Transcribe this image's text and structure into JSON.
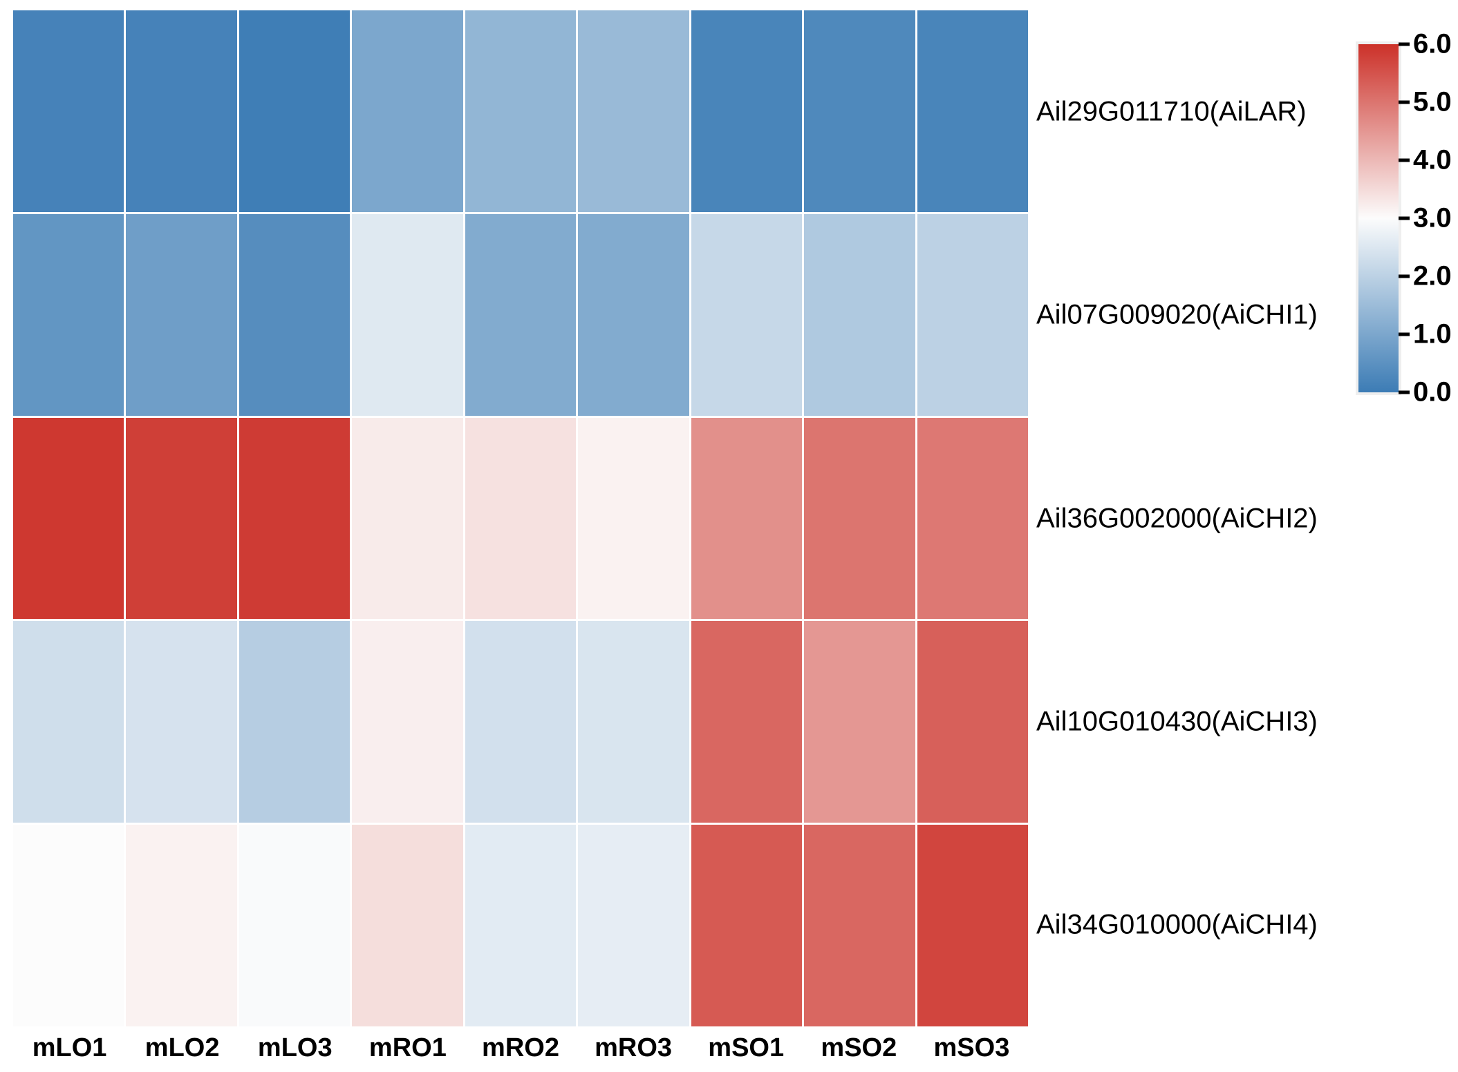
{
  "chart_data": {
    "type": "heatmap",
    "title": "",
    "xlabel": "",
    "ylabel": "",
    "columns": [
      "mLO1",
      "mLO2",
      "mLO3",
      "mRO1",
      "mRO2",
      "mRO3",
      "mSO1",
      "mSO2",
      "mSO3"
    ],
    "rows": [
      {
        "label": "Ail29G011710(AiLAR)",
        "values": [
          0.15,
          0.15,
          0.05,
          1.0,
          1.35,
          1.45,
          0.2,
          0.3,
          0.2
        ]
      },
      {
        "label": "Ail07G009020(AiCHI1)",
        "values": [
          0.6,
          0.8,
          0.4,
          2.55,
          1.1,
          1.1,
          2.15,
          1.8,
          2.0
        ]
      },
      {
        "label": "Ail36G002000(AiCHI2)",
        "values": [
          5.9,
          5.8,
          5.85,
          3.25,
          3.4,
          3.15,
          4.6,
          5.0,
          4.95
        ]
      },
      {
        "label": "Ail10G010430(AiCHI3)",
        "values": [
          2.3,
          2.4,
          1.9,
          3.2,
          2.35,
          2.45,
          5.2,
          4.5,
          5.3
        ]
      },
      {
        "label": "Ail34G010000(AiCHI4)",
        "values": [
          3.0,
          3.15,
          2.95,
          3.45,
          2.6,
          2.65,
          5.4,
          5.2,
          5.7
        ]
      }
    ],
    "colorbar": {
      "min": 0.0,
      "max": 6.0,
      "midpoint": 3.0,
      "tick_labels": [
        "6.0",
        "5.0",
        "4.0",
        "3.0",
        "2.0",
        "1.0",
        "0.0"
      ],
      "position": "right",
      "color_low": "#3c7cb5",
      "color_mid": "#fcfcfc",
      "color_high": "#cc3129"
    },
    "grid_gap_color": "#ffffff",
    "legend_position": "right"
  }
}
